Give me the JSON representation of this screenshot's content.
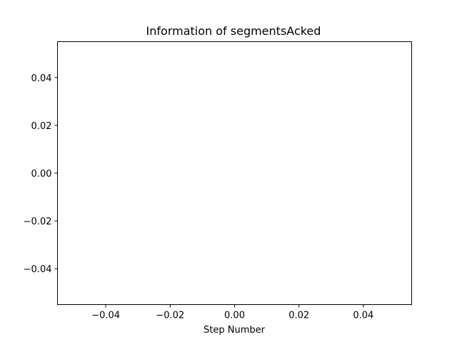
{
  "chart_data": {
    "type": "line",
    "title": "Information of segmentsAcked",
    "xlabel": "Step Number",
    "ylabel": "",
    "xlim": [
      -0.055,
      0.055
    ],
    "ylim": [
      -0.055,
      0.055
    ],
    "x_ticks": [
      -0.04,
      -0.02,
      0.0,
      0.02,
      0.04
    ],
    "x_tick_labels": [
      "−0.04",
      "−0.02",
      "0.00",
      "0.02",
      "0.04"
    ],
    "y_ticks": [
      -0.04,
      -0.02,
      0.0,
      0.02,
      0.04
    ],
    "y_tick_labels": [
      "−0.04",
      "−0.02",
      "0.00",
      "0.02",
      "0.04"
    ],
    "grid": false,
    "series": [
      {
        "x": [],
        "y": []
      }
    ]
  }
}
